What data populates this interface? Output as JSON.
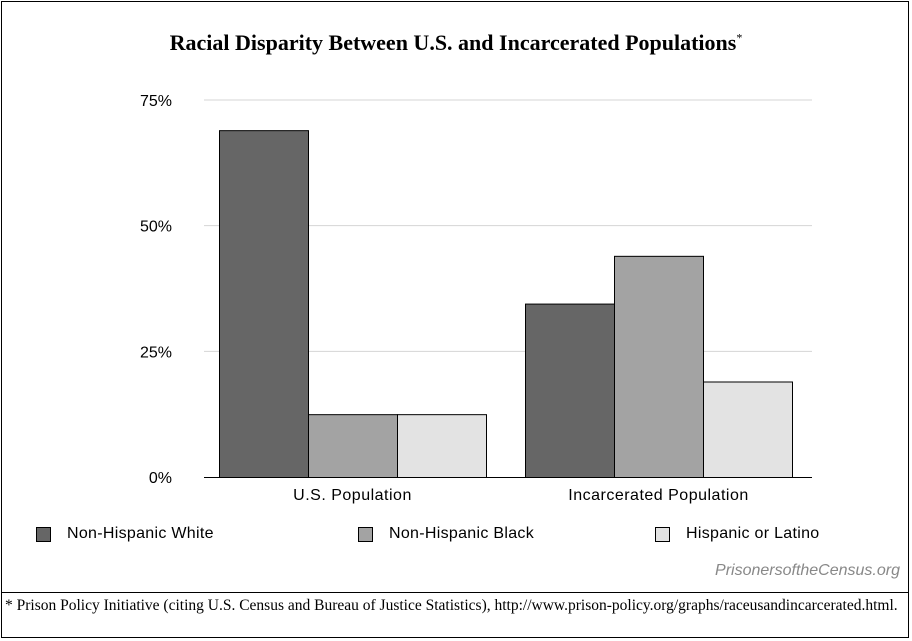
{
  "title": "Racial Disparity Between U.S. and Incarcerated Populations",
  "title_marker": "*",
  "watermark": "PrisonersoftheCensus.org",
  "footnote": "*  Prison Policy Initiative (citing U.S. Census and Bureau of Justice Statistics), http://www.prison-policy.org/graphs/raceusandincarcerated.html.",
  "colors": {
    "non_hispanic_white": "#666666",
    "non_hispanic_black": "#a3a3a3",
    "hispanic_or_latino": "#e3e3e3",
    "grid": "#d4d4d4"
  },
  "chart_data": {
    "type": "bar",
    "title": "Racial Disparity Between U.S. and Incarcerated Populations",
    "categories": [
      "U.S. Population",
      "Incarcerated Population"
    ],
    "series": [
      {
        "name": "Non-Hispanic White",
        "values": [
          69,
          34.5
        ]
      },
      {
        "name": "Non-Hispanic Black",
        "values": [
          12.5,
          44
        ]
      },
      {
        "name": "Hispanic or Latino",
        "values": [
          12.5,
          19
        ]
      }
    ],
    "ylim": [
      0,
      75
    ],
    "yticks": [
      0,
      25,
      50,
      75
    ],
    "ytick_labels": [
      "0%",
      "25%",
      "50%",
      "75%"
    ],
    "grid": true,
    "legend": "bottom"
  }
}
